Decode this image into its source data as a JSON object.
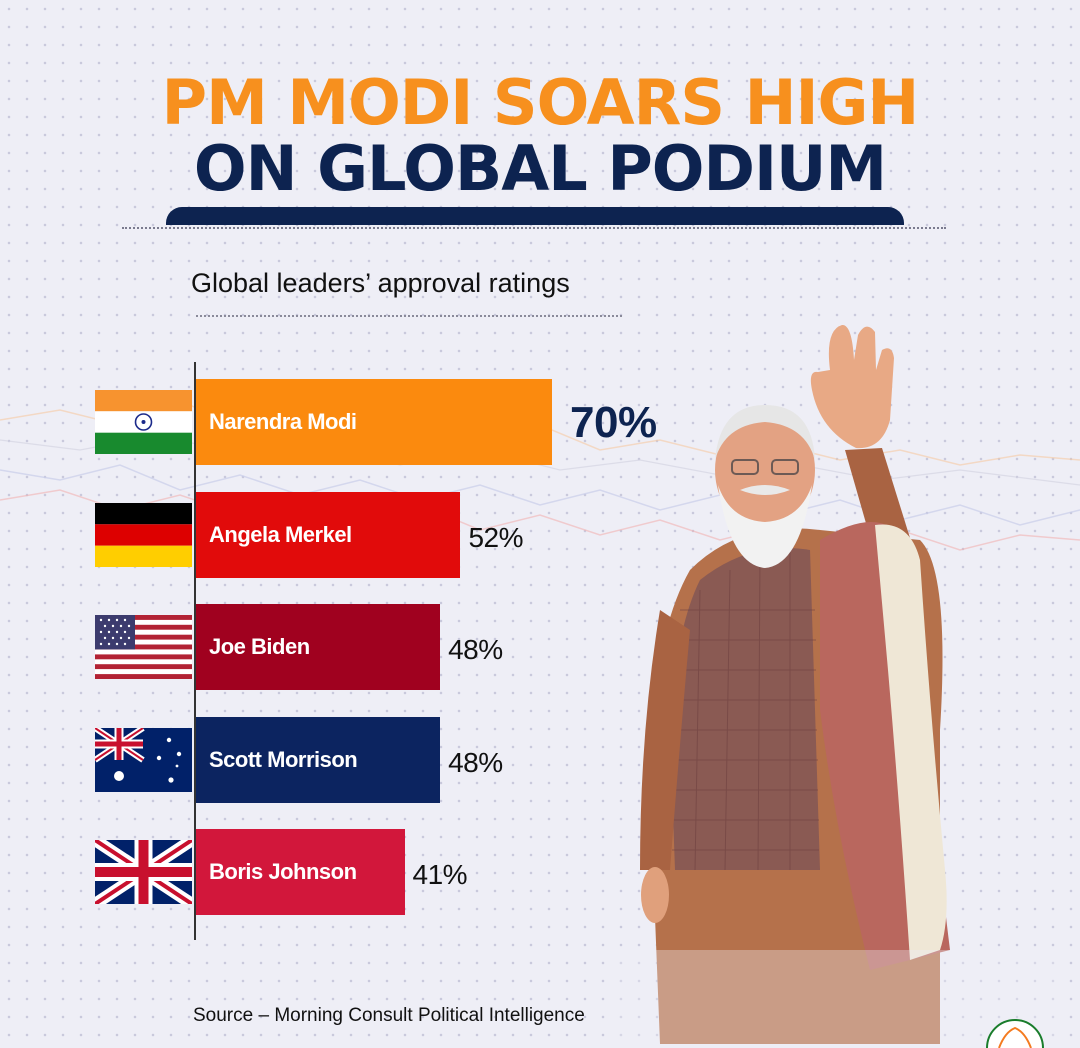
{
  "header": {
    "title_line1": "PM MODI SOARS HIGH",
    "title_line2": "ON GLOBAL PODIUM",
    "subtitle": "Global leaders’ approval ratings"
  },
  "footer": {
    "source": "Source – Morning Consult Political Intelligence"
  },
  "colors": {
    "title_orange": "#f7901e",
    "title_navy": "#0d2350",
    "modi": "#fb8a0e",
    "merkel": "#e10b0b",
    "biden": "#a0011f",
    "morrison": "#0c2460",
    "johnson": "#d2173b"
  },
  "chart_data": {
    "type": "bar",
    "orientation": "horizontal",
    "title": "Global leaders’ approval ratings",
    "unit": "%",
    "categories": [
      "Narendra Modi",
      "Angela Merkel",
      "Joe Biden",
      "Scott Morrison",
      "Boris Johnson"
    ],
    "values": [
      70,
      52,
      48,
      48,
      41
    ],
    "labels": [
      "70%",
      "52%",
      "48%",
      "48%",
      "41%"
    ],
    "flags": [
      "India",
      "Germany",
      "United States",
      "Australia",
      "United Kingdom"
    ],
    "bar_colors": [
      "#fb8a0e",
      "#e10b0b",
      "#a0011f",
      "#0c2460",
      "#d2173b"
    ],
    "xlim": [
      0,
      70
    ],
    "grid": false,
    "source": "Source – Morning Consult Political Intelligence"
  }
}
